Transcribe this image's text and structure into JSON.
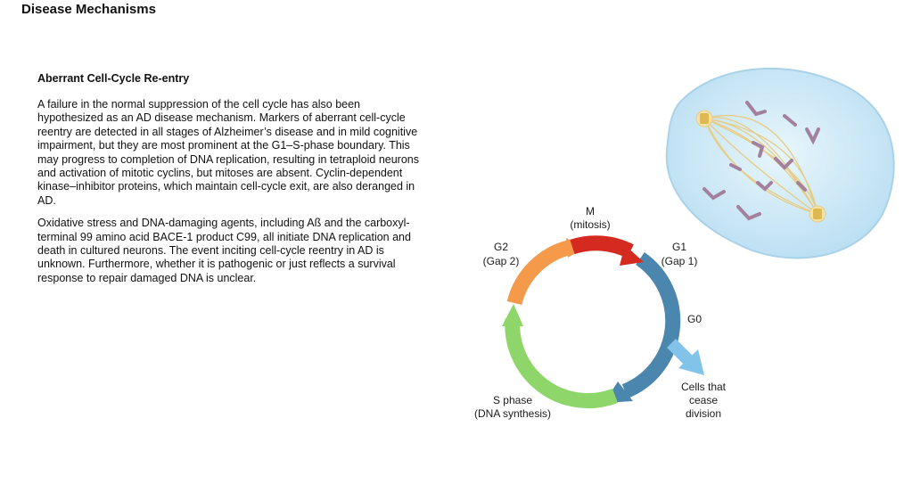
{
  "header": {
    "title": "Disease Mechanisms"
  },
  "article": {
    "heading": "Aberrant Cell-Cycle Re-entry",
    "paragraphs": [
      "A failure in the normal suppression of the cell cycle has also been hypothesized as an AD disease mechanism. Markers of aberrant cell-cycle reentry are detected in all stages of Alzheimer’s disease and in mild cognitive impairment, but they are most prominent at the G1–S-phase boundary. This may progress to completion of DNA replication, resulting in tetraploid neurons and activation of mitotic cyclins, but mitoses are absent. Cyclin-dependent kinase–inhibitor proteins, which maintain cell-cycle exit, are also deranged in AD.",
      "Oxidative stress and DNA-damaging agents, including Aß and the carboxyl-terminal 99 amino acid BACE-1 product C99, all initiate DNA replication and death in cultured neurons. The event inciting cell-cycle reentry in AD is unknown. Furthermore, whether it is pathogenic or just reflects a survival response to repair damaged DNA is unclear."
    ]
  },
  "cycle": {
    "m": {
      "line1": "M",
      "line2": "(mitosis)"
    },
    "g1": {
      "line1": "G1",
      "line2": "(Gap 1)"
    },
    "g2": {
      "line1": "G2",
      "line2": "(Gap 2)"
    },
    "g0": {
      "line1": "G0"
    },
    "s": {
      "line1": "S phase",
      "line2": "(DNA synthesis)"
    },
    "exit": {
      "line1": "Cells that",
      "line2": "cease",
      "line3": "division"
    },
    "colors": {
      "m": "#d42a20",
      "g1": "#4a86ad",
      "g2": "#f59a4a",
      "s": "#8fd66a",
      "g0": "#82c3ea",
      "cell": "#cde9f6",
      "spindle": "#e7cc85",
      "chromosome": "#a4809f"
    }
  }
}
